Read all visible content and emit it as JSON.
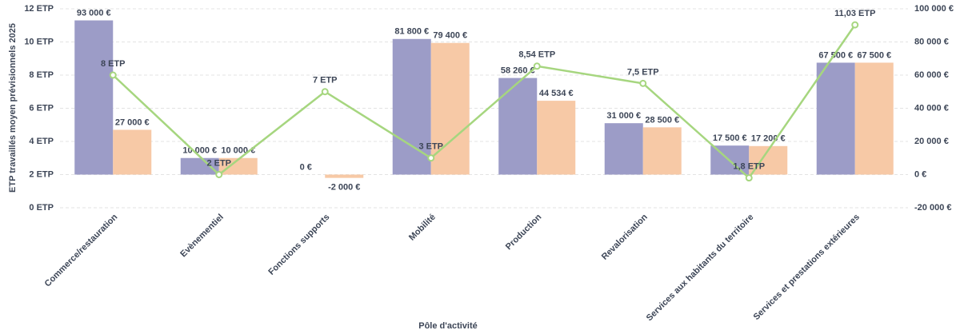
{
  "chart_data": {
    "type": "bar_line",
    "x_label": "Pôle d'activité",
    "y_label": "ETP travaillés moyen prévisionnels 2025",
    "categories": [
      "Commerce/restauration",
      "Evènementiel",
      "Fonctions supports",
      "Mobilité",
      "Production",
      "Revalorisation",
      "Services aux habitants du territoire",
      "Services et prestations extérieures"
    ],
    "ylim": [
      0,
      12
    ],
    "yticks": [
      {
        "value": 0,
        "label": "0 ETP"
      },
      {
        "value": 2,
        "label": "2 ETP"
      },
      {
        "value": 4,
        "label": "4 ETP"
      },
      {
        "value": 6,
        "label": "6 ETP"
      },
      {
        "value": 8,
        "label": "8 ETP"
      },
      {
        "value": 10,
        "label": "10 ETP"
      },
      {
        "value": 12,
        "label": "12 ETP"
      }
    ],
    "y2lim": [
      -20000,
      100000
    ],
    "y2ticks": [
      {
        "value": -20000,
        "label": "-20 000 €"
      },
      {
        "value": 0,
        "label": "0 €"
      },
      {
        "value": 20000,
        "label": "20 000 €"
      },
      {
        "value": 40000,
        "label": "40 000 €"
      },
      {
        "value": 60000,
        "label": "60 000 €"
      },
      {
        "value": 80000,
        "label": "80 000 €"
      },
      {
        "value": 100000,
        "label": "100 000 €"
      }
    ],
    "grid": true,
    "series": [
      {
        "type": "bar",
        "axis": "y2",
        "color": "#9c9cc7",
        "values": [
          93000,
          10000,
          0,
          81800,
          58260,
          31000,
          17500,
          67500
        ],
        "value_labels": [
          "93 000 €",
          "10 000 €",
          "0 €",
          "81 800 €",
          "58 260 €",
          "31 000 €",
          "17 500 €",
          "67 500 €"
        ]
      },
      {
        "type": "bar",
        "axis": "y2",
        "color": "#f7c9a6",
        "values": [
          27000,
          10000,
          -2000,
          79400,
          44534,
          28500,
          17200,
          67500
        ],
        "value_labels": [
          "27 000 €",
          "10 000 €",
          "-2 000 €",
          "79 400 €",
          "44 534 €",
          "28 500 €",
          "17 200 €",
          "67 500 €"
        ]
      },
      {
        "type": "line",
        "axis": "y",
        "color": "#a6d67f",
        "values": [
          8,
          2,
          7,
          3,
          8.54,
          7.5,
          1.8,
          11.03
        ],
        "value_labels": [
          "8 ETP",
          "2 ETP",
          "7 ETP",
          "3 ETP",
          "8,54 ETP",
          "7,5 ETP",
          "1,8 ETP",
          "11,03 ETP"
        ]
      }
    ]
  }
}
